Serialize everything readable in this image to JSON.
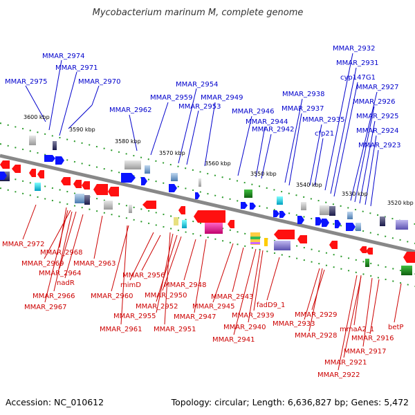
{
  "header": {
    "title": "Mycobacterium marinum M, complete genome"
  },
  "footer": {
    "accession": "Accession: NC_010612",
    "summary": "Topology: circular; Length: 6,636,827 bp; Genes: 5,472"
  },
  "colors": {
    "forward": "#0000cc",
    "reverse": "#cc0000",
    "forward_gene": "#0a14ff",
    "reverse_gene": "#ff1010",
    "backbone": "#888888",
    "tick": "#2a9a2a"
  },
  "ticks": [
    "3600 kbp",
    "3590 kbp",
    "3580 kbp",
    "3570 kbp",
    "3560 kbp",
    "3550 kbp",
    "3540 kbp",
    "3530 kbp",
    "3520 kbp"
  ],
  "forward_labels": [
    "MMAR_2974",
    "MMAR_2971",
    "MMAR_2975",
    "MMAR_2970",
    "MMAR_2954",
    "MMAR_2959",
    "MMAR_2949",
    "MMAR_2953",
    "MMAR_2962",
    "MMAR_2932",
    "MMAR_2931",
    "cyp147G1",
    "MMAR_2927",
    "MMAR_2938",
    "MMAR_2926",
    "MMAR_2946",
    "MMAR_2937",
    "MMAR_2944",
    "MMAR_2935",
    "MMAR_2925",
    "MMAR_2942",
    "cfp21",
    "MMAR_2924",
    "MMAR_2923"
  ],
  "reverse_labels": [
    "MMAR_2972",
    "MMAR_2968",
    "MMAR_2969",
    "MMAR_2963",
    "MMAR_2964",
    "nadR",
    "MMAR_2966",
    "MMAR_2967",
    "MMAR_2956",
    "mimD",
    "MMAR_2960",
    "MMAR_2948",
    "MMAR_2950",
    "MMAR_2952",
    "MMAR_2955",
    "MMAR_2961",
    "MMAR_2951",
    "MMAR_2943",
    "MMAR_2945",
    "MMAR_2947",
    "MMAR_2939",
    "MMAR_2940",
    "MMAR_2941",
    "fadD9_1",
    "MMAR_2929",
    "MMAR_2933",
    "MMAR_2928",
    "mmaA2_1",
    "betP",
    "MMAR_2916",
    "MMAR_2917",
    "MMAR_2921",
    "MMAR_2922"
  ]
}
